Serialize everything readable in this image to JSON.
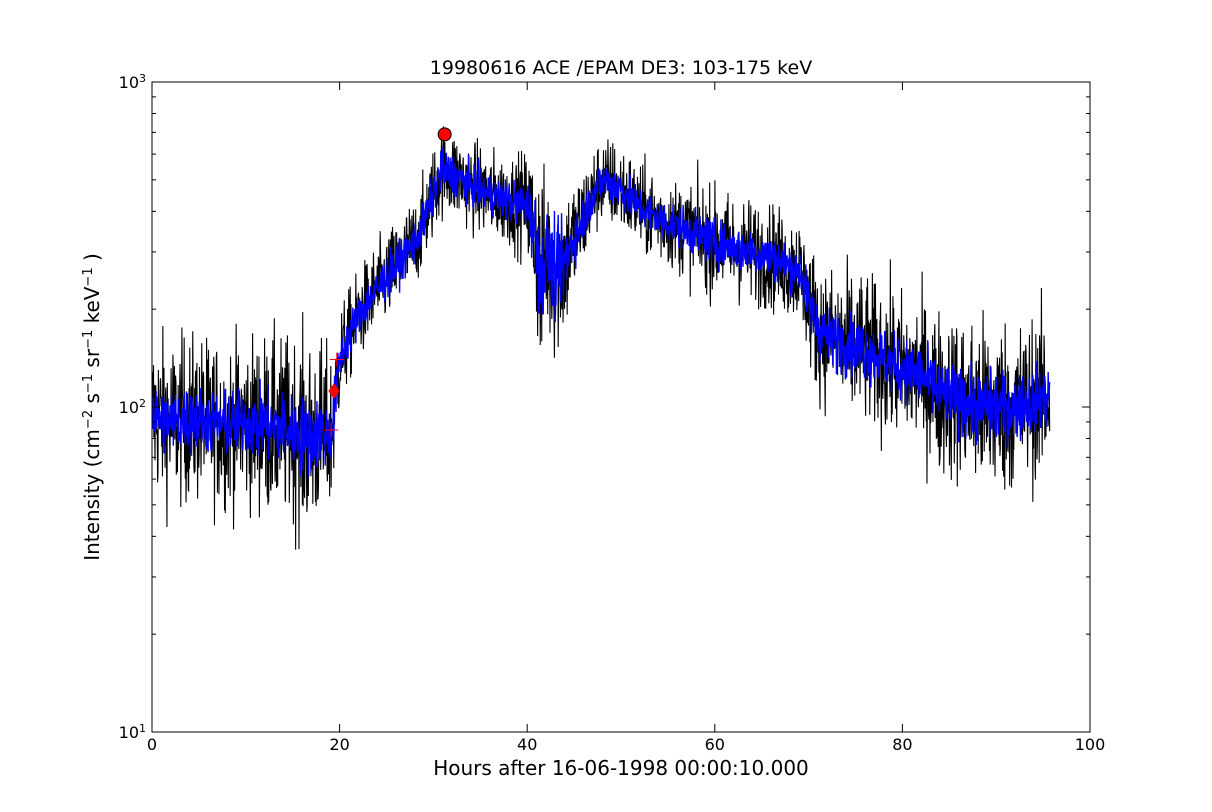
{
  "chart_data": {
    "type": "line",
    "title": "19980616 ACE /EPAM DE3: 103-175 keV",
    "xlabel": "Hours after 16-06-1998 00:00:10.000",
    "ylabel_parts": {
      "prefix": "Intensity (cm",
      "exp1": "−2",
      "s": " s",
      "exp2": "−1",
      "sr": " sr",
      "exp3": "−1",
      "kev": " keV",
      "exp4": "−1",
      "suffix": " )"
    },
    "xlim": [
      0,
      100
    ],
    "ylim": [
      10,
      1000
    ],
    "yscale": "log",
    "grid": false,
    "x_ticks": [
      0,
      20,
      40,
      60,
      80,
      100
    ],
    "x_tick_labels": [
      "0",
      "20",
      "40",
      "60",
      "80",
      "100"
    ],
    "y_major_ticks": [
      10,
      100,
      1000
    ],
    "y_tick_label_base": "10",
    "y_tick_label_exps": [
      "1",
      "2",
      "3"
    ],
    "series": [
      {
        "kind": "raw-noisy",
        "color": "#000000",
        "x": [
          0,
          2,
          4,
          6,
          8,
          10,
          12,
          14,
          16,
          17,
          18,
          19,
          19.3,
          19.6,
          20,
          21,
          22,
          24,
          26,
          28,
          29,
          30,
          31,
          32,
          34,
          36,
          38,
          40,
          41,
          41.5,
          42,
          43,
          44,
          45,
          46,
          47,
          48,
          50,
          52,
          54,
          56,
          58,
          60,
          62,
          64,
          66,
          68,
          69,
          70,
          71,
          72,
          74,
          76,
          78,
          80,
          82,
          84,
          86,
          88,
          90,
          92,
          94,
          95.7
        ],
        "y": [
          95,
          90,
          92,
          90,
          88,
          90,
          88,
          86,
          82,
          80,
          84,
          82,
          88,
          110,
          140,
          165,
          190,
          230,
          270,
          320,
          370,
          460,
          540,
          520,
          480,
          450,
          430,
          420,
          320,
          240,
          300,
          260,
          280,
          330,
          380,
          450,
          500,
          470,
          410,
          380,
          360,
          340,
          320,
          310,
          300,
          290,
          270,
          265,
          210,
          175,
          165,
          155,
          150,
          140,
          130,
          125,
          110,
          105,
          100,
          100,
          100,
          105,
          108
        ],
        "spread": [
          0.55,
          0.55,
          0.55,
          0.55,
          0.55,
          0.55,
          0.6,
          0.6,
          0.65,
          0.65,
          0.6,
          0.55,
          0.5,
          0.4,
          0.35,
          0.3,
          0.3,
          0.3,
          0.3,
          0.3,
          0.3,
          0.3,
          0.3,
          0.3,
          0.3,
          0.3,
          0.3,
          0.35,
          0.6,
          0.7,
          0.55,
          0.6,
          0.5,
          0.4,
          0.35,
          0.3,
          0.3,
          0.3,
          0.3,
          0.3,
          0.3,
          0.35,
          0.35,
          0.35,
          0.35,
          0.35,
          0.35,
          0.35,
          0.4,
          0.45,
          0.45,
          0.5,
          0.5,
          0.5,
          0.5,
          0.5,
          0.55,
          0.55,
          0.6,
          0.6,
          0.55,
          0.55,
          0.55
        ]
      },
      {
        "kind": "smoothed",
        "color": "#0000ff",
        "x": [
          0,
          2,
          4,
          6,
          8,
          10,
          12,
          14,
          16,
          17,
          18,
          19,
          19.3,
          19.6,
          20,
          21,
          22,
          24,
          26,
          28,
          29,
          30,
          31,
          32,
          34,
          36,
          38,
          40,
          41,
          41.5,
          42,
          43,
          44,
          45,
          46,
          47,
          48,
          50,
          52,
          54,
          56,
          58,
          60,
          62,
          64,
          66,
          68,
          69,
          70,
          71,
          72,
          74,
          76,
          78,
          80,
          82,
          84,
          86,
          88,
          90,
          92,
          94,
          95.7
        ],
        "y": [
          95,
          90,
          92,
          90,
          88,
          90,
          88,
          86,
          82,
          80,
          84,
          82,
          88,
          110,
          140,
          165,
          190,
          230,
          270,
          320,
          370,
          460,
          540,
          520,
          480,
          450,
          430,
          420,
          320,
          240,
          300,
          260,
          280,
          330,
          380,
          450,
          500,
          470,
          410,
          380,
          360,
          340,
          320,
          310,
          300,
          290,
          270,
          265,
          210,
          175,
          165,
          155,
          150,
          140,
          130,
          125,
          110,
          105,
          100,
          100,
          100,
          105,
          108
        ],
        "spread": [
          0.22,
          0.22,
          0.22,
          0.22,
          0.22,
          0.22,
          0.24,
          0.24,
          0.26,
          0.26,
          0.24,
          0.22,
          0.2,
          0.18,
          0.15,
          0.14,
          0.14,
          0.14,
          0.14,
          0.14,
          0.14,
          0.14,
          0.14,
          0.14,
          0.14,
          0.14,
          0.14,
          0.15,
          0.3,
          0.35,
          0.28,
          0.3,
          0.25,
          0.18,
          0.15,
          0.14,
          0.14,
          0.14,
          0.14,
          0.14,
          0.14,
          0.15,
          0.15,
          0.15,
          0.15,
          0.15,
          0.15,
          0.15,
          0.17,
          0.19,
          0.19,
          0.2,
          0.2,
          0.2,
          0.2,
          0.2,
          0.22,
          0.22,
          0.24,
          0.24,
          0.22,
          0.22,
          0.22
        ]
      }
    ],
    "markers": [
      {
        "name": "peak-circle",
        "shape": "circle",
        "x": 31.2,
        "y": 690,
        "color": "#ff0000"
      },
      {
        "name": "onset-diamond",
        "shape": "diamond",
        "x": 19.4,
        "y": 112,
        "color": "#ff0000"
      },
      {
        "name": "onset-plus-upper",
        "shape": "plus",
        "x": 19.7,
        "y": 140,
        "color": "#ff0000"
      },
      {
        "name": "onset-plus-lower",
        "shape": "plus",
        "x": 19.1,
        "y": 85,
        "color": "#ff0000"
      }
    ]
  }
}
